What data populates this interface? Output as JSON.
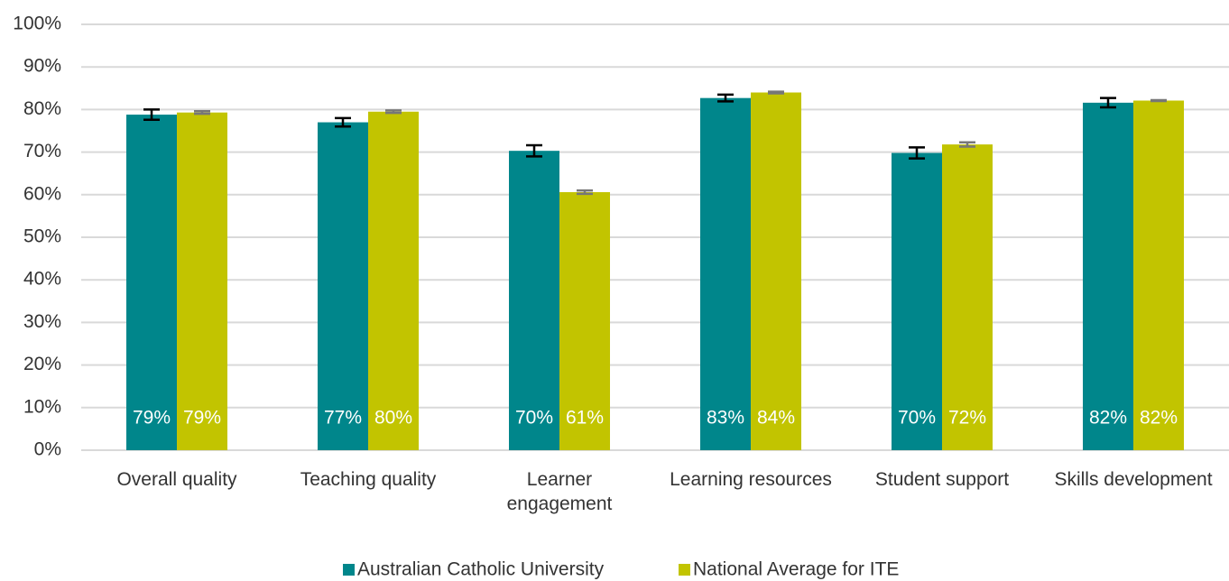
{
  "chart_data": {
    "type": "bar",
    "categories": [
      "Overall quality",
      "Teaching quality",
      "Learner\nengagement",
      "Learning resources",
      "Student support",
      "Skills development"
    ],
    "series": [
      {
        "name": "Australian Catholic University",
        "color": "#00868b",
        "error_color": "#000000",
        "values": [
          78.8,
          77,
          70.3,
          82.7,
          69.8,
          81.6
        ],
        "errors": [
          1.2,
          1.0,
          1.3,
          0.8,
          1.3,
          1.1
        ],
        "value_labels": [
          "79%",
          "77%",
          "70%",
          "83%",
          "70%",
          "82%"
        ]
      },
      {
        "name": "National Average for ITE",
        "color": "#c2c400",
        "error_color": "#777777",
        "values": [
          79.3,
          79.5,
          60.6,
          84,
          71.8,
          82.1
        ],
        "errors": [
          0.3,
          0.3,
          0.4,
          0.2,
          0.5,
          0.1
        ],
        "value_labels": [
          "79%",
          "80%",
          "61%",
          "84%",
          "72%",
          "82%"
        ]
      }
    ],
    "ylim": [
      0,
      100
    ],
    "yticks": [
      {
        "value": 0,
        "label": "0%"
      },
      {
        "value": 10,
        "label": "10%"
      },
      {
        "value": 20,
        "label": "20%"
      },
      {
        "value": 30,
        "label": "30%"
      },
      {
        "value": 40,
        "label": "40%"
      },
      {
        "value": 50,
        "label": "50%"
      },
      {
        "value": 60,
        "label": "60%"
      },
      {
        "value": 70,
        "label": "70%"
      },
      {
        "value": 80,
        "label": "80%"
      },
      {
        "value": 90,
        "label": "90%"
      },
      {
        "value": 100,
        "label": "100%"
      }
    ],
    "grid": true,
    "legend": "bottom"
  }
}
